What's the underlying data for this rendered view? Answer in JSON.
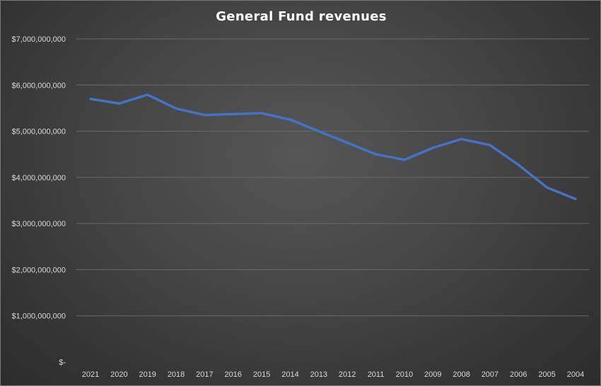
{
  "chart_data": {
    "type": "line",
    "title": "General Fund revenues",
    "xlabel": "",
    "ylabel": "",
    "categories": [
      "2021",
      "2020",
      "2019",
      "2018",
      "2017",
      "2016",
      "2015",
      "2014",
      "2013",
      "2012",
      "2011",
      "2010",
      "2009",
      "2008",
      "2007",
      "2006",
      "2005",
      "2004"
    ],
    "series": [
      {
        "values": [
          5700000000,
          5600000000,
          5790000000,
          5490000000,
          5350000000,
          5370000000,
          5390000000,
          5250000000,
          5000000000,
          4750000000,
          4500000000,
          4380000000,
          4640000000,
          4830000000,
          4700000000,
          4270000000,
          3780000000,
          3530000000
        ]
      }
    ],
    "ylim": [
      0,
      7000000000
    ],
    "y_ticks": [
      0,
      1000000000,
      2000000000,
      3000000000,
      4000000000,
      5000000000,
      6000000000,
      7000000000
    ],
    "y_tick_labels": [
      "$-",
      "$1,000,000,000",
      "$2,000,000,000",
      "$3,000,000,000",
      "$4,000,000,000",
      "$5,000,000,000",
      "$6,000,000,000",
      "$7,000,000,000"
    ],
    "grid": true,
    "legend": "none",
    "colors": {
      "line": "#4472c4",
      "gridline": "#6a6a6a",
      "text": "#d9d9d9",
      "title": "#ffffff"
    }
  }
}
